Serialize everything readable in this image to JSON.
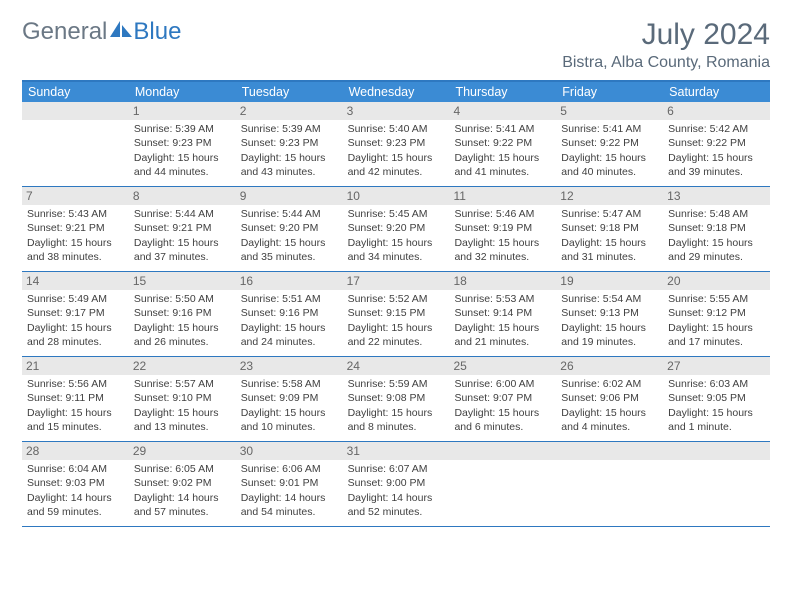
{
  "logo": {
    "part1": "General",
    "part2": "Blue"
  },
  "title": "July 2024",
  "location": "Bistra, Alba County, Romania",
  "weekdays": [
    "Sunday",
    "Monday",
    "Tuesday",
    "Wednesday",
    "Thursday",
    "Friday",
    "Saturday"
  ],
  "colors": {
    "header_bar": "#3b8bd4",
    "border": "#2e78c0",
    "daynum_bg": "#e8e8e8",
    "text": "#404040",
    "title_text": "#5a6a7a"
  },
  "weeks": [
    [
      {
        "n": "",
        "sr": "",
        "ss": "",
        "dl": ""
      },
      {
        "n": "1",
        "sr": "5:39 AM",
        "ss": "9:23 PM",
        "dl": "15 hours and 44 minutes."
      },
      {
        "n": "2",
        "sr": "5:39 AM",
        "ss": "9:23 PM",
        "dl": "15 hours and 43 minutes."
      },
      {
        "n": "3",
        "sr": "5:40 AM",
        "ss": "9:23 PM",
        "dl": "15 hours and 42 minutes."
      },
      {
        "n": "4",
        "sr": "5:41 AM",
        "ss": "9:22 PM",
        "dl": "15 hours and 41 minutes."
      },
      {
        "n": "5",
        "sr": "5:41 AM",
        "ss": "9:22 PM",
        "dl": "15 hours and 40 minutes."
      },
      {
        "n": "6",
        "sr": "5:42 AM",
        "ss": "9:22 PM",
        "dl": "15 hours and 39 minutes."
      }
    ],
    [
      {
        "n": "7",
        "sr": "5:43 AM",
        "ss": "9:21 PM",
        "dl": "15 hours and 38 minutes."
      },
      {
        "n": "8",
        "sr": "5:44 AM",
        "ss": "9:21 PM",
        "dl": "15 hours and 37 minutes."
      },
      {
        "n": "9",
        "sr": "5:44 AM",
        "ss": "9:20 PM",
        "dl": "15 hours and 35 minutes."
      },
      {
        "n": "10",
        "sr": "5:45 AM",
        "ss": "9:20 PM",
        "dl": "15 hours and 34 minutes."
      },
      {
        "n": "11",
        "sr": "5:46 AM",
        "ss": "9:19 PM",
        "dl": "15 hours and 32 minutes."
      },
      {
        "n": "12",
        "sr": "5:47 AM",
        "ss": "9:18 PM",
        "dl": "15 hours and 31 minutes."
      },
      {
        "n": "13",
        "sr": "5:48 AM",
        "ss": "9:18 PM",
        "dl": "15 hours and 29 minutes."
      }
    ],
    [
      {
        "n": "14",
        "sr": "5:49 AM",
        "ss": "9:17 PM",
        "dl": "15 hours and 28 minutes."
      },
      {
        "n": "15",
        "sr": "5:50 AM",
        "ss": "9:16 PM",
        "dl": "15 hours and 26 minutes."
      },
      {
        "n": "16",
        "sr": "5:51 AM",
        "ss": "9:16 PM",
        "dl": "15 hours and 24 minutes."
      },
      {
        "n": "17",
        "sr": "5:52 AM",
        "ss": "9:15 PM",
        "dl": "15 hours and 22 minutes."
      },
      {
        "n": "18",
        "sr": "5:53 AM",
        "ss": "9:14 PM",
        "dl": "15 hours and 21 minutes."
      },
      {
        "n": "19",
        "sr": "5:54 AM",
        "ss": "9:13 PM",
        "dl": "15 hours and 19 minutes."
      },
      {
        "n": "20",
        "sr": "5:55 AM",
        "ss": "9:12 PM",
        "dl": "15 hours and 17 minutes."
      }
    ],
    [
      {
        "n": "21",
        "sr": "5:56 AM",
        "ss": "9:11 PM",
        "dl": "15 hours and 15 minutes."
      },
      {
        "n": "22",
        "sr": "5:57 AM",
        "ss": "9:10 PM",
        "dl": "15 hours and 13 minutes."
      },
      {
        "n": "23",
        "sr": "5:58 AM",
        "ss": "9:09 PM",
        "dl": "15 hours and 10 minutes."
      },
      {
        "n": "24",
        "sr": "5:59 AM",
        "ss": "9:08 PM",
        "dl": "15 hours and 8 minutes."
      },
      {
        "n": "25",
        "sr": "6:00 AM",
        "ss": "9:07 PM",
        "dl": "15 hours and 6 minutes."
      },
      {
        "n": "26",
        "sr": "6:02 AM",
        "ss": "9:06 PM",
        "dl": "15 hours and 4 minutes."
      },
      {
        "n": "27",
        "sr": "6:03 AM",
        "ss": "9:05 PM",
        "dl": "15 hours and 1 minute."
      }
    ],
    [
      {
        "n": "28",
        "sr": "6:04 AM",
        "ss": "9:03 PM",
        "dl": "14 hours and 59 minutes."
      },
      {
        "n": "29",
        "sr": "6:05 AM",
        "ss": "9:02 PM",
        "dl": "14 hours and 57 minutes."
      },
      {
        "n": "30",
        "sr": "6:06 AM",
        "ss": "9:01 PM",
        "dl": "14 hours and 54 minutes."
      },
      {
        "n": "31",
        "sr": "6:07 AM",
        "ss": "9:00 PM",
        "dl": "14 hours and 52 minutes."
      },
      {
        "n": "",
        "sr": "",
        "ss": "",
        "dl": ""
      },
      {
        "n": "",
        "sr": "",
        "ss": "",
        "dl": ""
      },
      {
        "n": "",
        "sr": "",
        "ss": "",
        "dl": ""
      }
    ]
  ]
}
